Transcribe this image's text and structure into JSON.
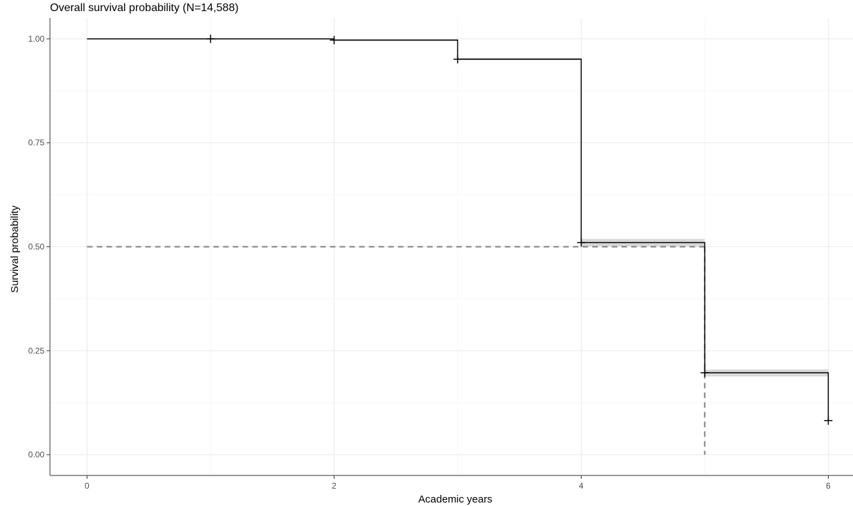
{
  "chart_data": {
    "type": "line",
    "title": "Overall survival probability (N=14,588)",
    "xlabel": "Academic years",
    "ylabel": "Survival probability",
    "xlim": [
      -0.3,
      6.2
    ],
    "ylim": [
      -0.05,
      1.05
    ],
    "x_ticks": [
      "0",
      "2",
      "4",
      "6"
    ],
    "y_ticks": [
      "0.00",
      "0.25",
      "0.50",
      "0.75",
      "1.00"
    ],
    "grid": true,
    "series": [
      {
        "style": "step",
        "color": "#000000",
        "x": [
          0,
          1,
          2,
          3,
          4,
          5,
          6
        ],
        "y": [
          1.0,
          1.0,
          0.997,
          0.951,
          0.51,
          0.197,
          0.082
        ],
        "ci_lower": [
          1.0,
          1.0,
          0.995,
          0.948,
          0.501,
          0.188,
          0.082
        ],
        "ci_upper": [
          1.0,
          1.0,
          0.999,
          0.954,
          0.519,
          0.205,
          0.082
        ],
        "censor_marks_x": [
          1,
          2,
          3,
          4,
          5,
          6
        ],
        "censor_marks_y": [
          1.0,
          0.997,
          0.951,
          0.51,
          0.197,
          0.082
        ]
      }
    ],
    "reference_lines": [
      {
        "style": "dashed",
        "color": "#7f7f7f",
        "from": [
          0,
          0.5
        ],
        "to": [
          5,
          0.5
        ]
      },
      {
        "style": "dashed",
        "color": "#7f7f7f",
        "from": [
          5,
          0.5
        ],
        "to": [
          5,
          0.0
        ]
      }
    ]
  }
}
